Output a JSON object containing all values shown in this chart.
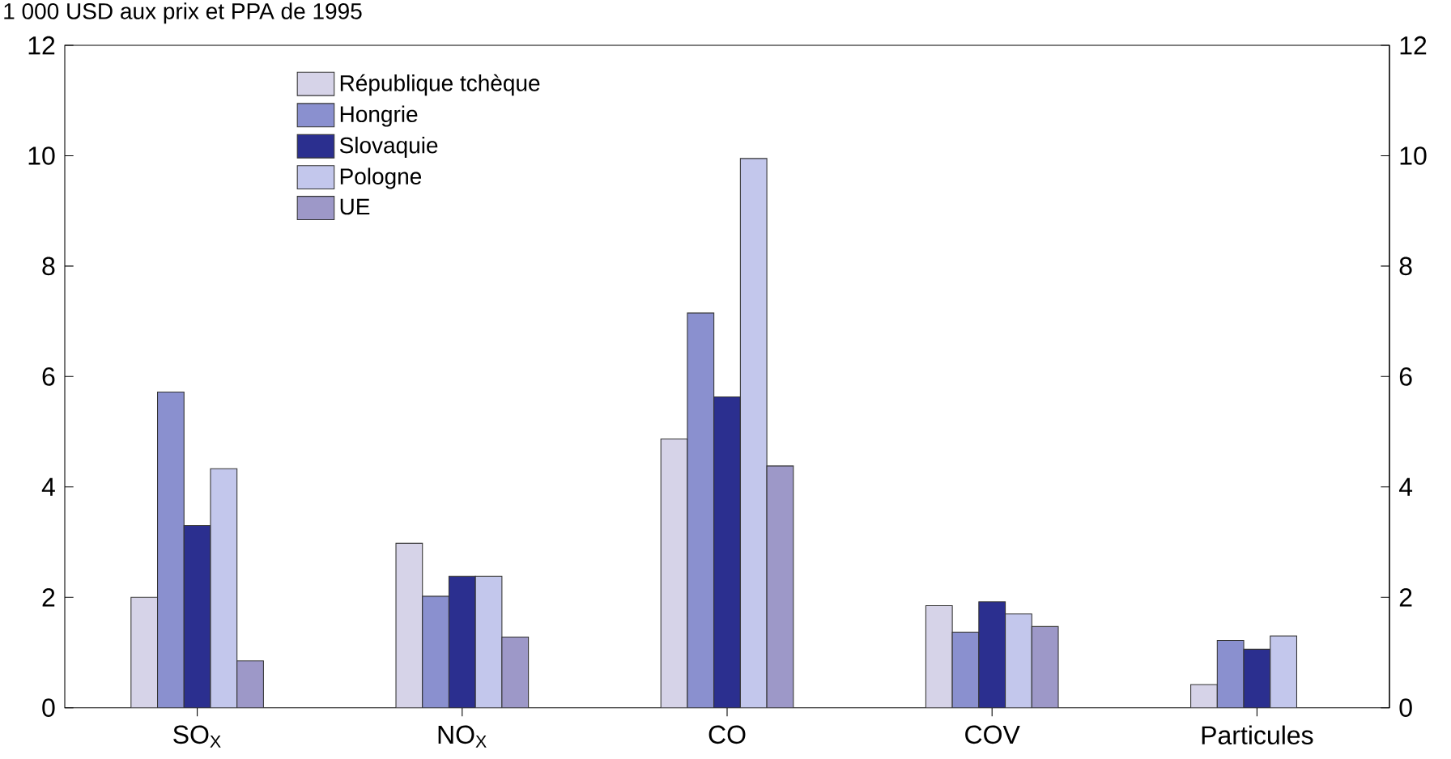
{
  "chart_data": {
    "type": "bar",
    "title": "1 000 USD aux prix et PPA de 1995",
    "categories": [
      "SO$_{X}$",
      "NO$_{X}$",
      "CO",
      "COV",
      "Particules"
    ],
    "series": [
      {
        "name": "République tchèque",
        "color": "#d6d3e8",
        "values": [
          2.0,
          2.98,
          4.87,
          1.85,
          0.42
        ]
      },
      {
        "name": "Hongrie",
        "color": "#8a90cf",
        "values": [
          5.72,
          2.02,
          7.15,
          1.37,
          1.22
        ]
      },
      {
        "name": "Slovaquie",
        "color": "#2b2f8f",
        "values": [
          3.3,
          2.38,
          5.63,
          1.92,
          1.06
        ]
      },
      {
        "name": "Pologne",
        "color": "#c3c7ec",
        "values": [
          4.33,
          2.38,
          9.95,
          1.7,
          1.3
        ]
      },
      {
        "name": "UE",
        "color": "#9d98c8",
        "values": [
          0.85,
          1.28,
          4.38,
          1.47,
          null
        ]
      }
    ],
    "ylim": [
      0,
      12
    ],
    "yticks": [
      0,
      2,
      4,
      6,
      8,
      10,
      12
    ],
    "y2lim": [
      0,
      12
    ],
    "y2ticks": [
      0,
      2,
      4,
      6,
      8,
      10,
      12
    ],
    "legend": "top left",
    "grid": false
  }
}
